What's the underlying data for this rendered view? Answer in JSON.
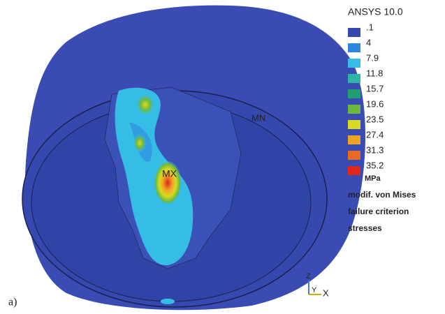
{
  "figure": {
    "legend": {
      "title": "ANSYS 10.0",
      "levels": [
        {
          "label": ".1",
          "color": "#3448b0"
        },
        {
          "label": "4",
          "color": "#2f86e0"
        },
        {
          "label": "7.9",
          "color": "#36bde6"
        },
        {
          "label": "11.8",
          "color": "#2fb5a5"
        },
        {
          "label": "15.7",
          "color": "#20a070"
        },
        {
          "label": "19.6",
          "color": "#6cb83e"
        },
        {
          "label": "23.5",
          "color": "#dada24"
        },
        {
          "label": "27.4",
          "color": "#f0a424"
        },
        {
          "label": "31.3",
          "color": "#e86a24"
        },
        {
          "label": "35.2",
          "color": "#e0261e"
        }
      ],
      "unit": "MPa",
      "description": [
        "modif. von Mises",
        "failure criterion",
        "stresses"
      ]
    },
    "labels": {
      "max": "MX",
      "min": "MN"
    },
    "triad": {
      "z": "Z",
      "y": "Y",
      "x": "X"
    },
    "panel_label": "a)"
  }
}
